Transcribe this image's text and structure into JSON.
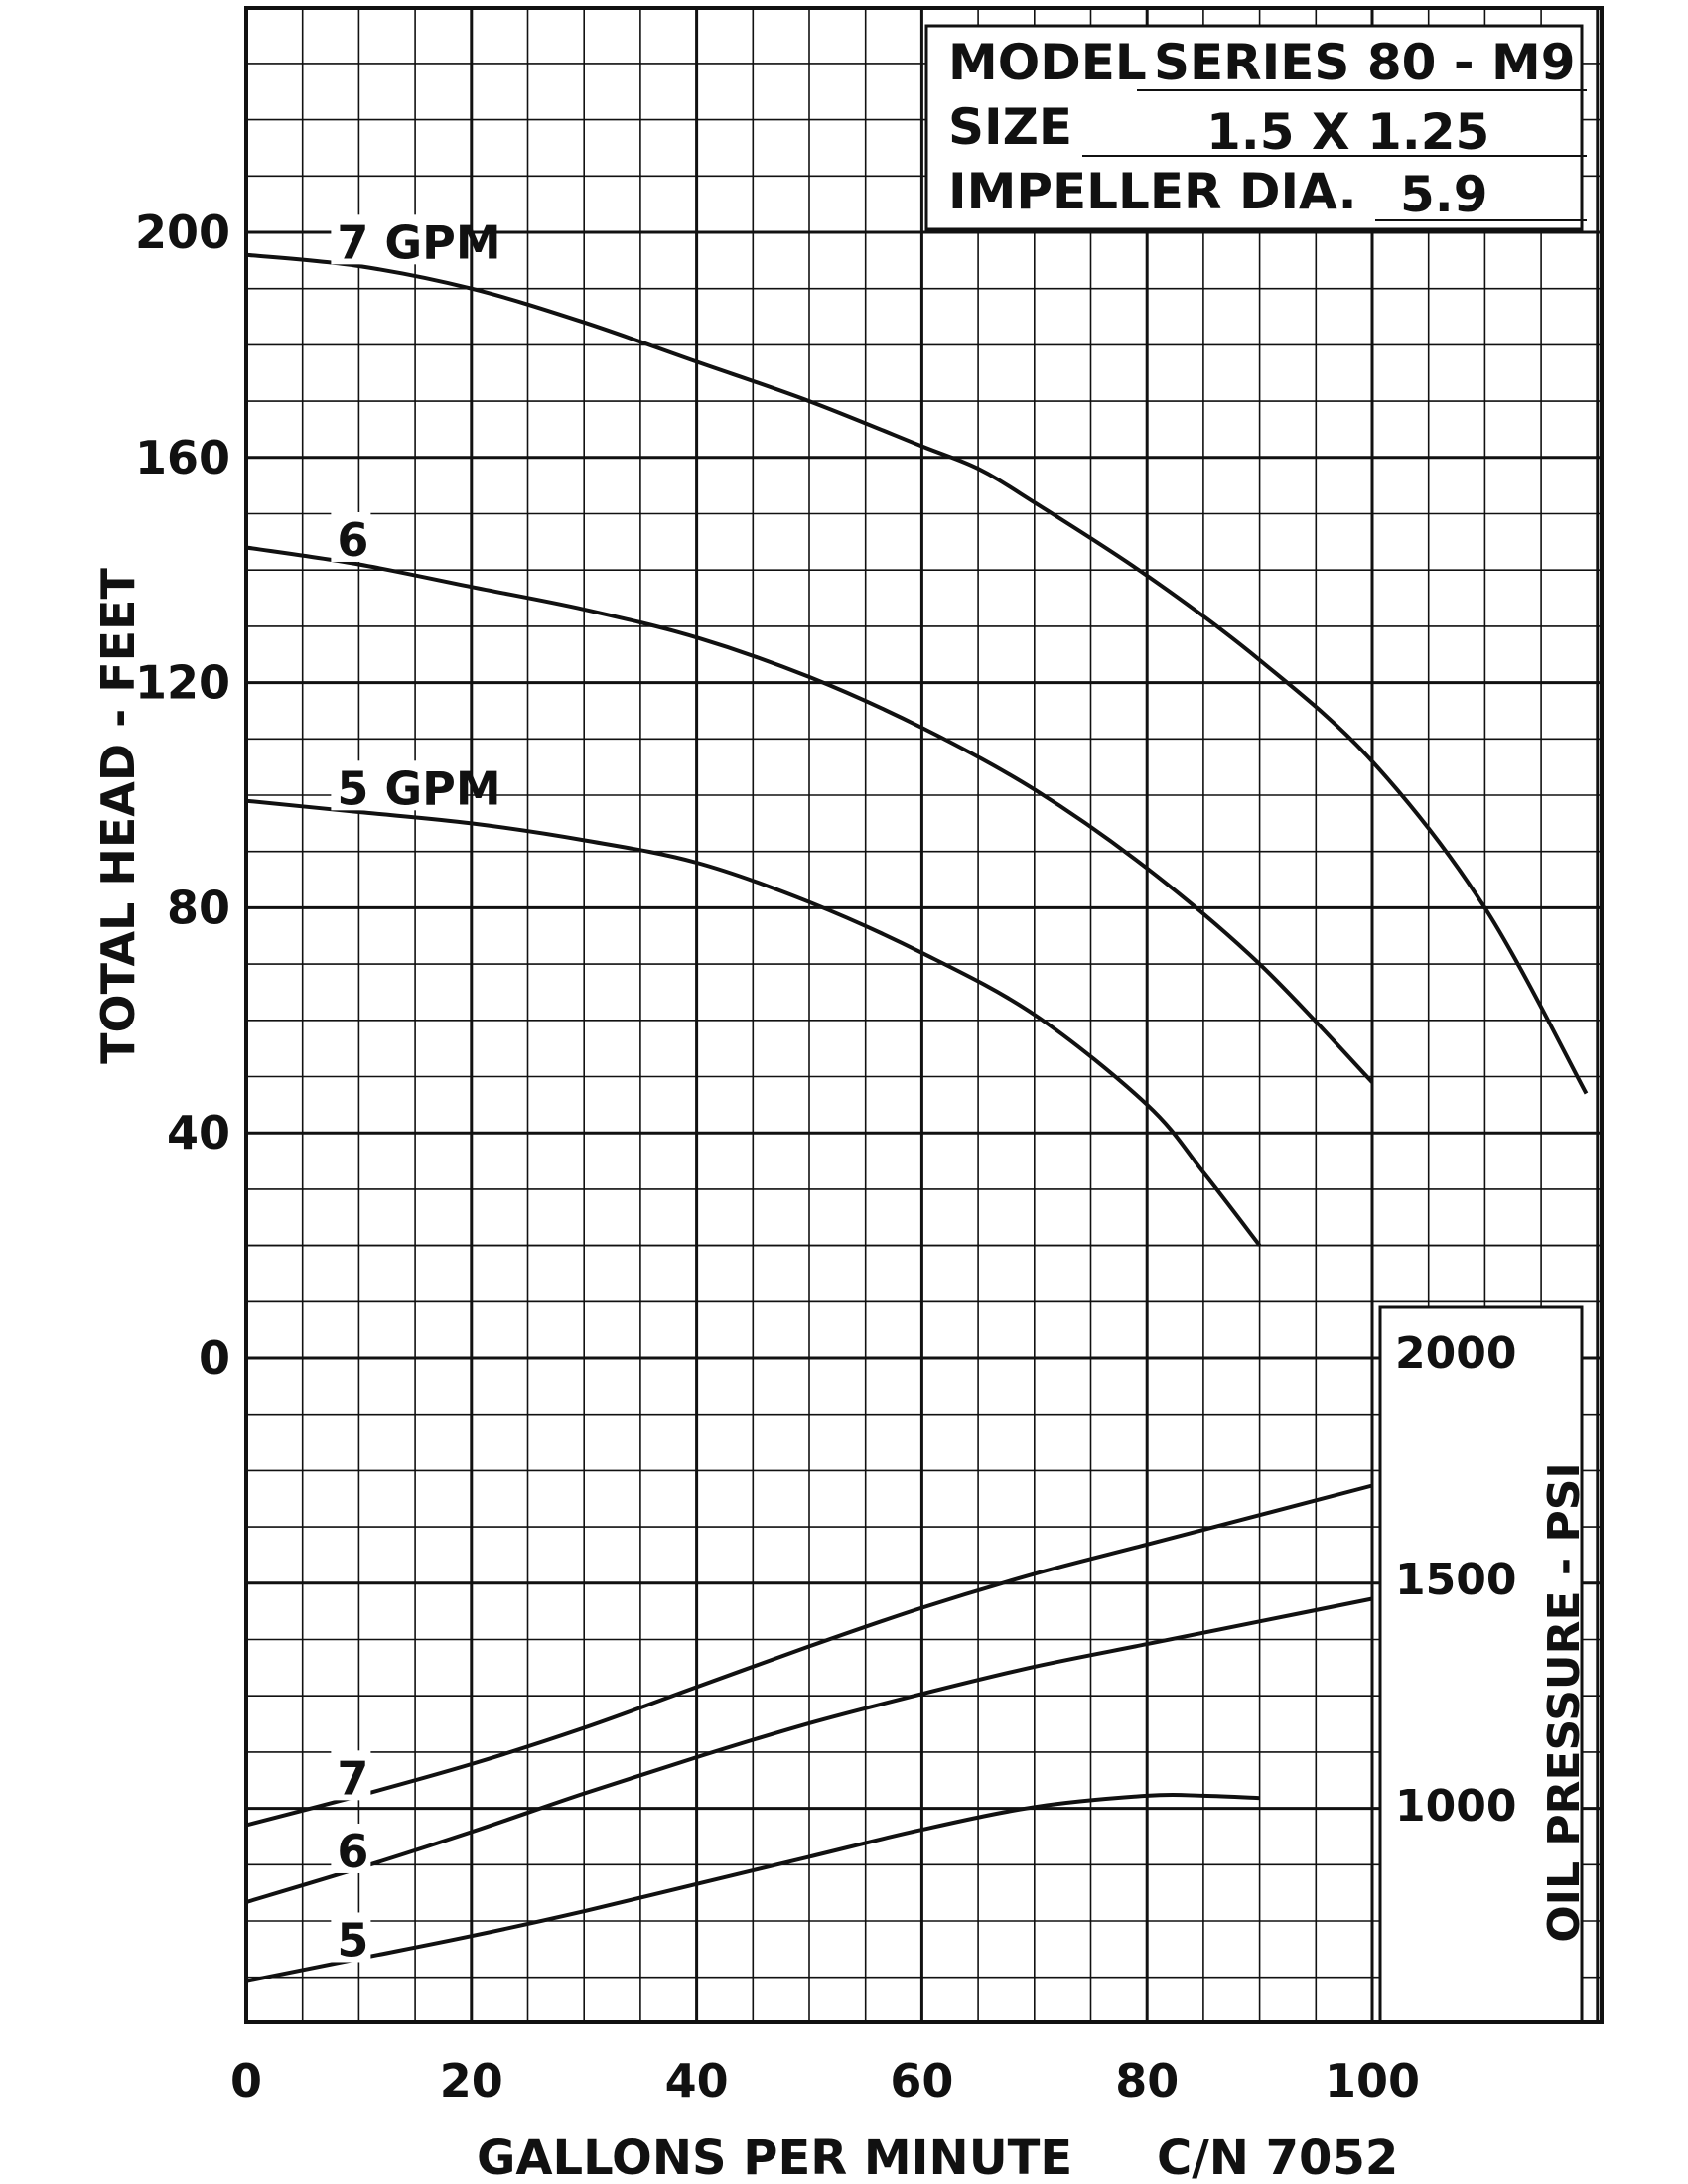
{
  "chart_data": {
    "type": "line",
    "info": {
      "model_label": "MODEL",
      "model_value": "SERIES 80 - M9",
      "size_label": "SIZE",
      "size_value": "1.5 X 1.25",
      "impeller_label": "IMPELLER DIA.",
      "impeller_value": "5.9"
    },
    "xlabel": "GALLONS PER MINUTE",
    "catalog_number": "C/N 7052",
    "ylabel_left": "TOTAL HEAD - FEET",
    "ylabel_right": "OIL PRESSURE - PSI",
    "x_ticks": [
      "0",
      "20",
      "40",
      "60",
      "80",
      "100"
    ],
    "head_ticks": [
      "0",
      "40",
      "80",
      "120",
      "160",
      "200"
    ],
    "psi_ticks": [
      "1000",
      "1500",
      "2000"
    ],
    "xlim": [
      0,
      120
    ],
    "head_ylim": [
      0,
      240
    ],
    "psi_ylim": [
      500,
      2000
    ],
    "grid": true,
    "head_series": [
      {
        "name": "7 GPM",
        "x": [
          0,
          10,
          20,
          30,
          40,
          50,
          60,
          65,
          70,
          80,
          90,
          100,
          110,
          119
        ],
        "y": [
          196,
          194,
          190,
          184,
          177,
          170,
          162,
          158,
          152,
          139,
          124,
          106,
          80,
          47
        ]
      },
      {
        "name": "6",
        "x": [
          0,
          10,
          20,
          30,
          40,
          50,
          60,
          70,
          80,
          90,
          100
        ],
        "y": [
          144,
          141,
          137,
          133,
          128,
          121,
          112,
          101,
          87,
          70,
          49
        ]
      },
      {
        "name": "5 GPM",
        "x": [
          0,
          10,
          20,
          30,
          40,
          50,
          60,
          70,
          80,
          85,
          90
        ],
        "y": [
          99,
          97,
          95,
          92,
          88,
          81,
          72,
          61,
          45,
          33,
          20
        ]
      }
    ],
    "psi_series": [
      {
        "name": "7",
        "x": [
          0,
          10,
          20,
          30,
          40,
          50,
          60,
          70,
          80,
          90,
          100
        ],
        "y": [
          955,
          1020,
          1090,
          1170,
          1260,
          1350,
          1435,
          1510,
          1575,
          1640,
          1705
        ]
      },
      {
        "name": "6",
        "x": [
          0,
          10,
          20,
          30,
          40,
          50,
          60,
          70,
          80,
          90,
          100
        ],
        "y": [
          785,
          860,
          940,
          1025,
          1105,
          1180,
          1245,
          1305,
          1355,
          1405,
          1455
        ]
      },
      {
        "name": "5",
        "x": [
          0,
          10,
          20,
          30,
          40,
          50,
          60,
          70,
          80,
          85,
          90
        ],
        "y": [
          610,
          660,
          710,
          765,
          825,
          885,
          945,
          995,
          1020,
          1020,
          1015
        ]
      }
    ]
  }
}
